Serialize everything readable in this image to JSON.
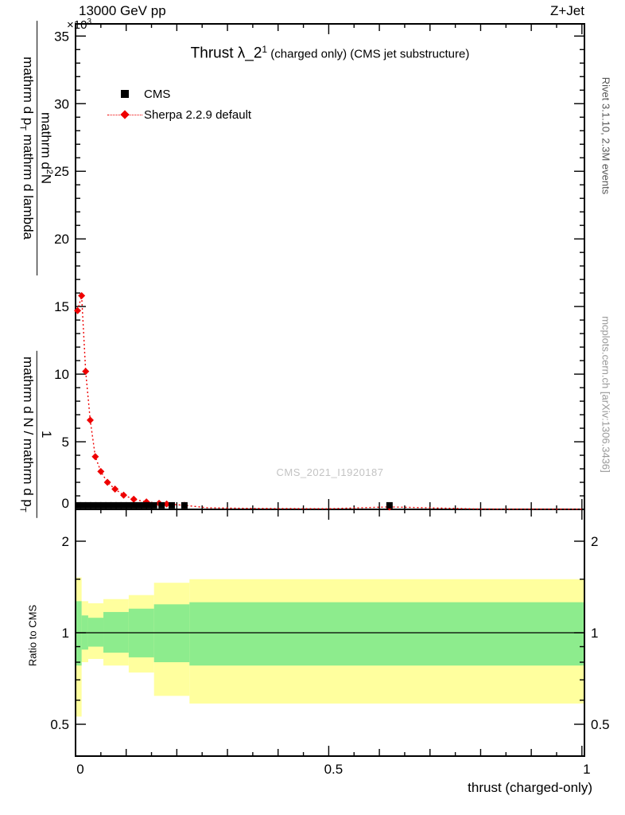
{
  "header": {
    "scale_prefix": "×10",
    "scale_exp": "3",
    "energy": "13000 GeV pp",
    "process": "Z+Jet"
  },
  "title": {
    "main": "Thrust λ_2",
    "sup": "1",
    "rest": " (charged only) (CMS jet substructure)"
  },
  "legend": {
    "items": [
      {
        "label": "CMS",
        "marker": "black-square",
        "color": "#000000"
      },
      {
        "label": "Sherpa 2.2.9 default",
        "marker": "red-diamond-dotted-line",
        "color": "#ee0000"
      }
    ]
  },
  "watermark": "CMS_2021_I1920187",
  "side_notes": {
    "rivet": "Rivet 3.1.10,  2.3M events",
    "mcplots": "mcplots.cern.ch [arXiv:1306.3436]"
  },
  "axis_labels": {
    "y_upper_num1": "mathrm d",
    "y_upper_sup": "2",
    "y_upper_num2": "N",
    "y_upper_den1": "mathrm d p",
    "y_upper_den_sub": "T",
    "y_upper_den2": " mathrm d lambda",
    "y_lower_num": "1",
    "y_lower_den1": "mathrm d N / mathrm d p",
    "y_lower_den_sub": "T",
    "ratio": "Ratio to CMS",
    "x": "thrust (charged-only)"
  },
  "chart_data": {
    "type": "line",
    "title": "Thrust λ_2^1 (charged only) (CMS jet substructure)",
    "xlabel": "thrust (charged-only)",
    "ylabel_broken_latex": "1 / mathrm d N / mathrm d p_T  ·  mathrm d²N / (mathrm d p_T mathrm d lambda)",
    "y_scale_note": "×10³",
    "xlim": [
      0,
      1.005
    ],
    "ylim": [
      0,
      35.9
    ],
    "x_axis": {
      "major_ticks": [
        0,
        0.5,
        1
      ],
      "major_labels": [
        "0",
        "0.5",
        "1"
      ],
      "minor_step": 0.05
    },
    "y_axis": {
      "major_ticks": [
        0,
        5,
        10,
        15,
        20,
        25,
        30,
        35
      ],
      "major_labels": [
        "0",
        "5",
        "10",
        "15",
        "20",
        "25",
        "30",
        "35"
      ],
      "minor_step": 1
    },
    "series": [
      {
        "name": "CMS",
        "type": "scatter",
        "marker": "square",
        "color": "#000000",
        "x": [
          0.005,
          0.015,
          0.025,
          0.035,
          0.045,
          0.055,
          0.065,
          0.075,
          0.085,
          0.095,
          0.105,
          0.115,
          0.125,
          0.135,
          0.145,
          0.155,
          0.17,
          0.19,
          0.215,
          0.62
        ],
        "y": [
          0.3,
          0.3,
          0.3,
          0.3,
          0.3,
          0.3,
          0.3,
          0.3,
          0.3,
          0.3,
          0.3,
          0.3,
          0.3,
          0.3,
          0.3,
          0.3,
          0.3,
          0.3,
          0.3,
          0.3
        ]
      },
      {
        "name": "Sherpa 2.2.9 default",
        "type": "line-scatter",
        "marker": "diamond",
        "line_style": "dotted",
        "color": "#ee0000",
        "x": [
          0.004,
          0.012,
          0.02,
          0.029,
          0.039,
          0.05,
          0.063,
          0.078,
          0.095,
          0.115,
          0.14,
          0.165,
          0.18,
          0.215,
          0.62
        ],
        "y": [
          14.7,
          15.8,
          10.2,
          6.6,
          3.9,
          2.8,
          2.0,
          1.5,
          1.05,
          0.75,
          0.55,
          0.45,
          0.4,
          0.3,
          0.18
        ],
        "tail_x": [
          0.26,
          0.35,
          0.5,
          0.8,
          1.0
        ],
        "tail_y": [
          0.12,
          0.07,
          0.05,
          0.03,
          0.02
        ]
      }
    ],
    "ratio_panel": {
      "ylabel": "Ratio to CMS",
      "ref_line": 1,
      "yticks": [
        0.5,
        1,
        2
      ],
      "ytick_labels": [
        "0.5",
        "1",
        "2"
      ],
      "minor_ticks": [
        0.6,
        0.7,
        0.8,
        0.9,
        1.5
      ],
      "bands": [
        {
          "name": "total-uncertainty",
          "color": "#ffff9e",
          "segments": [
            [
              0.0,
              0.012,
              0.53,
              1.52
            ],
            [
              0.012,
              0.025,
              0.8,
              1.27
            ],
            [
              0.025,
              0.055,
              0.82,
              1.25
            ],
            [
              0.055,
              0.105,
              0.78,
              1.29
            ],
            [
              0.105,
              0.155,
              0.74,
              1.33
            ],
            [
              0.155,
              0.225,
              0.62,
              1.46
            ],
            [
              0.225,
              1.005,
              0.585,
              1.5
            ]
          ]
        },
        {
          "name": "stat-uncertainty",
          "color": "#8dec8d",
          "segments": [
            [
              0.0,
              0.012,
              0.78,
              1.27
            ],
            [
              0.012,
              0.025,
              0.88,
              1.14
            ],
            [
              0.025,
              0.055,
              0.9,
              1.12
            ],
            [
              0.055,
              0.105,
              0.86,
              1.17
            ],
            [
              0.105,
              0.155,
              0.83,
              1.2
            ],
            [
              0.155,
              0.225,
              0.8,
              1.24
            ],
            [
              0.225,
              1.005,
              0.78,
              1.26
            ]
          ]
        }
      ]
    }
  }
}
